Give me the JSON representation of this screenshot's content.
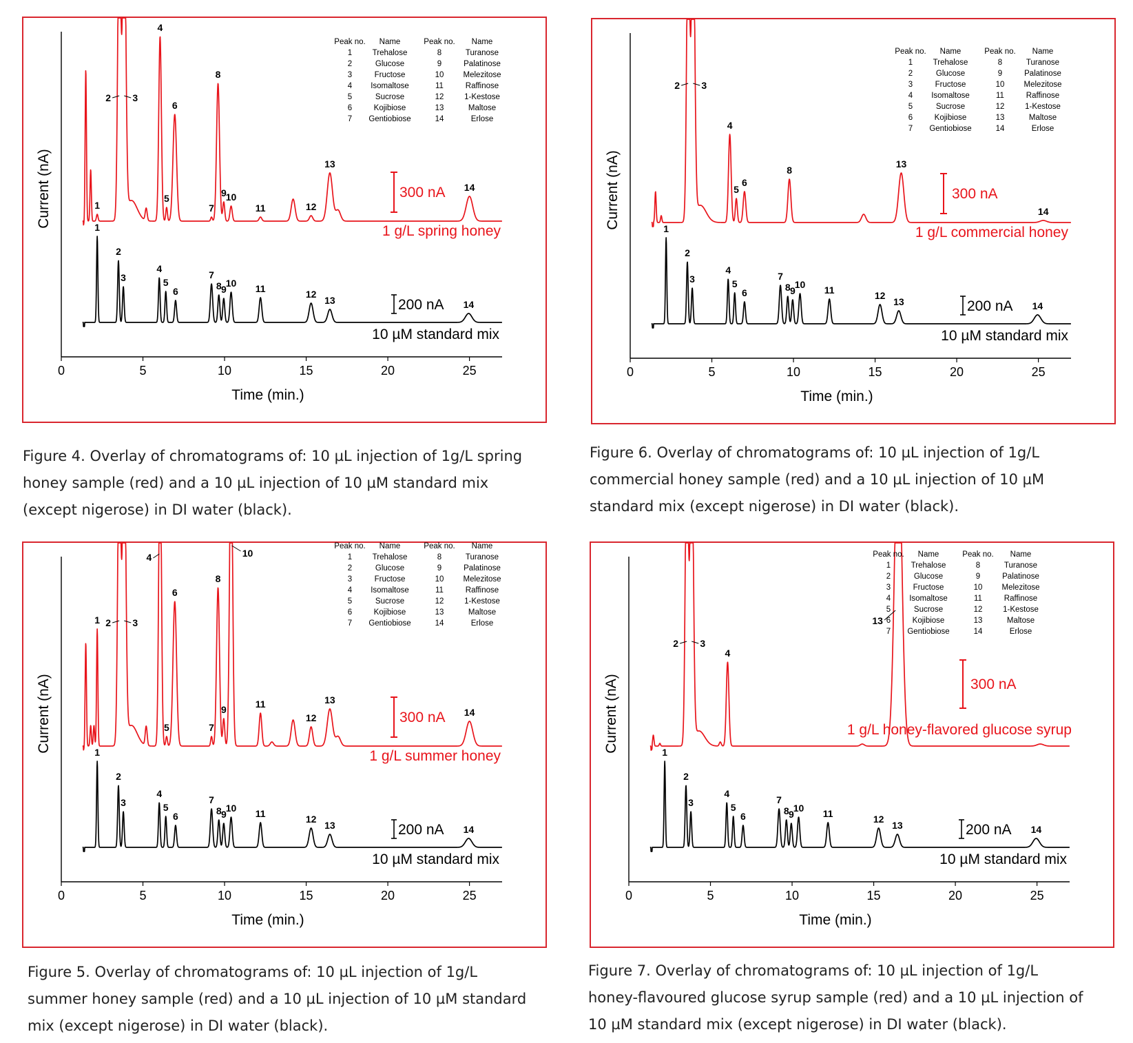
{
  "peak_table": {
    "headers": [
      "Peak no.",
      "Name",
      "Peak no.",
      "Name"
    ],
    "rows": [
      [
        "1",
        "Trehalose",
        "8",
        "Turanose"
      ],
      [
        "2",
        "Glucose",
        "9",
        "Palatinose"
      ],
      [
        "3",
        "Fructose",
        "10",
        "Melezitose"
      ],
      [
        "4",
        "Isomaltose",
        "11",
        "Raffinose"
      ],
      [
        "5",
        "Sucrose",
        "12",
        "1-Kestose"
      ],
      [
        "6",
        "Kojibiose",
        "13",
        "Maltose"
      ],
      [
        "7",
        "Gentiobiose",
        "14",
        "Erlose"
      ]
    ]
  },
  "colors": {
    "sample": "#e8141b",
    "standard": "#000000",
    "frame": "#d9262e"
  },
  "figures": [
    {
      "caption": [
        "Figure 4. Overlay of chromatograms of: 10 µL injection of 1g/L spring",
        "honey sample (red) and a 10 µL injection of 10 µM standard mix",
        "(except nigerose) in DI water (black)."
      ]
    },
    {
      "caption": [
        "Figure 6. Overlay of chromatograms of: 10 µL injection of 1g/L",
        "commercial honey sample (red) and a 10 µL injection of 10 µM",
        "standard mix (except nigerose) in DI water (black)."
      ]
    },
    {
      "caption": [
        "Figure 5. Overlay of chromatograms of: 10 µL injection of 1g/L",
        "summer honey sample (red) and a 10 µL injection of 10 µM standard",
        "mix (except nigerose) in DI water (black)."
      ]
    },
    {
      "caption": [
        "Figure 7. Overlay of chromatograms of: 10 µL injection of 1g/L",
        "honey-flavoured glucose syrup sample (red) and a 10 µL injection of",
        "10 µM standard mix (except nigerose) in DI water (black)."
      ]
    }
  ],
  "chart_data": [
    {
      "type": "line",
      "xlabel": "Time (min.)",
      "ylabel": "Current (nA)",
      "xlim": [
        0,
        27
      ],
      "x_ticks": [
        0,
        5,
        10,
        15,
        20,
        25
      ],
      "grid": false,
      "sample_label": "1 g/L spring honey",
      "sample_scale_bar": "300 nA",
      "standard_label": "10 µM standard mix",
      "standard_scale_bar": "200 nA",
      "series": [
        {
          "name": "1 g/L spring honey",
          "color": "#e8141b",
          "peaks": [
            {
              "t": 1.5,
              "h": 220,
              "w": 0.04
            },
            {
              "t": 1.8,
              "h": 75,
              "w": 0.04
            },
            {
              "t": 2.2,
              "h": 10,
              "w": 0.05,
              "label": "1"
            },
            {
              "t": 3.55,
              "h": 460,
              "w": 0.09,
              "clip": true,
              "label": "2"
            },
            {
              "t": 3.85,
              "h": 460,
              "w": 0.1,
              "clip": true,
              "label": "3"
            },
            {
              "t": 4.3,
              "h": 30,
              "w": 0.35
            },
            {
              "t": 5.2,
              "h": 18,
              "w": 0.06
            },
            {
              "t": 6.05,
              "h": 268,
              "w": 0.08,
              "label": "4"
            },
            {
              "t": 6.45,
              "h": 20,
              "w": 0.05,
              "label": "5"
            },
            {
              "t": 6.95,
              "h": 155,
              "w": 0.11,
              "label": "6"
            },
            {
              "t": 9.2,
              "h": 6,
              "w": 0.05,
              "label": "7"
            },
            {
              "t": 9.6,
              "h": 200,
              "w": 0.09,
              "label": "8"
            },
            {
              "t": 9.95,
              "h": 28,
              "w": 0.06,
              "label": "9"
            },
            {
              "t": 10.4,
              "h": 22,
              "w": 0.07,
              "label": "10"
            },
            {
              "t": 12.2,
              "h": 6,
              "w": 0.08,
              "label": "11"
            },
            {
              "t": 14.2,
              "h": 32,
              "w": 0.12
            },
            {
              "t": 15.3,
              "h": 8,
              "w": 0.1,
              "label": "12"
            },
            {
              "t": 16.45,
              "h": 70,
              "w": 0.16,
              "label": "13"
            },
            {
              "t": 16.95,
              "h": 16,
              "w": 0.15
            },
            {
              "t": 25.0,
              "h": 36,
              "w": 0.2,
              "label": "14"
            }
          ]
        },
        {
          "name": "10 µM standard mix",
          "color": "#000000",
          "peaks": [
            {
              "t": 2.2,
              "h": 125,
              "w": 0.04,
              "label": "1"
            },
            {
              "t": 3.5,
              "h": 90,
              "w": 0.05,
              "label": "2"
            },
            {
              "t": 3.8,
              "h": 52,
              "w": 0.05,
              "label": "3"
            },
            {
              "t": 6.0,
              "h": 65,
              "w": 0.05,
              "label": "4"
            },
            {
              "t": 6.4,
              "h": 45,
              "w": 0.05,
              "label": "5"
            },
            {
              "t": 7.0,
              "h": 32,
              "w": 0.06,
              "label": "6"
            },
            {
              "t": 9.2,
              "h": 56,
              "w": 0.07,
              "label": "7"
            },
            {
              "t": 9.65,
              "h": 40,
              "w": 0.06,
              "label": "8"
            },
            {
              "t": 9.95,
              "h": 35,
              "w": 0.06,
              "label": "9"
            },
            {
              "t": 10.4,
              "h": 44,
              "w": 0.07,
              "label": "10"
            },
            {
              "t": 12.2,
              "h": 36,
              "w": 0.08,
              "label": "11"
            },
            {
              "t": 15.3,
              "h": 28,
              "w": 0.12,
              "label": "12"
            },
            {
              "t": 16.45,
              "h": 19,
              "w": 0.13,
              "label": "13"
            },
            {
              "t": 24.95,
              "h": 13,
              "w": 0.2,
              "label": "14"
            }
          ]
        }
      ]
    },
    {
      "type": "line",
      "xlabel": "Time (min.)",
      "ylabel": "Current (nA)",
      "xlim": [
        0,
        27
      ],
      "x_ticks": [
        0,
        5,
        10,
        15,
        20,
        25
      ],
      "grid": false,
      "sample_label": "1 g/L commercial honey",
      "sample_scale_bar": "300 nA",
      "standard_label": "10 µM standard mix",
      "standard_scale_bar": "200 nA",
      "series": [
        {
          "name": "1 g/L commercial honey",
          "color": "#e8141b",
          "peaks": [
            {
              "t": 1.55,
              "h": 45,
              "w": 0.04
            },
            {
              "t": 1.9,
              "h": 10,
              "w": 0.04
            },
            {
              "t": 3.55,
              "h": 460,
              "w": 0.09,
              "clip": true,
              "label": "2"
            },
            {
              "t": 3.85,
              "h": 460,
              "w": 0.1,
              "clip": true,
              "label": "3"
            },
            {
              "t": 4.3,
              "h": 25,
              "w": 0.35
            },
            {
              "t": 6.1,
              "h": 128,
              "w": 0.08,
              "label": "4"
            },
            {
              "t": 6.5,
              "h": 35,
              "w": 0.06,
              "label": "5"
            },
            {
              "t": 7.0,
              "h": 45,
              "w": 0.08,
              "label": "6"
            },
            {
              "t": 9.75,
              "h": 63,
              "w": 0.09,
              "label": "8"
            },
            {
              "t": 14.3,
              "h": 12,
              "w": 0.13
            },
            {
              "t": 16.6,
              "h": 72,
              "w": 0.16,
              "label": "13"
            },
            {
              "t": 25.3,
              "h": 3,
              "w": 0.2,
              "label": "14"
            }
          ]
        },
        {
          "name": "10 µM standard mix",
          "color": "#000000",
          "peaks": [
            {
              "t": 2.2,
              "h": 125,
              "w": 0.04,
              "label": "1"
            },
            {
              "t": 3.5,
              "h": 90,
              "w": 0.05,
              "label": "2"
            },
            {
              "t": 3.8,
              "h": 52,
              "w": 0.05,
              "label": "3"
            },
            {
              "t": 6.0,
              "h": 65,
              "w": 0.05,
              "label": "4"
            },
            {
              "t": 6.4,
              "h": 45,
              "w": 0.05,
              "label": "5"
            },
            {
              "t": 7.0,
              "h": 32,
              "w": 0.06,
              "label": "6"
            },
            {
              "t": 9.2,
              "h": 56,
              "w": 0.07,
              "label": "7"
            },
            {
              "t": 9.65,
              "h": 40,
              "w": 0.06,
              "label": "8"
            },
            {
              "t": 9.95,
              "h": 35,
              "w": 0.06,
              "label": "9"
            },
            {
              "t": 10.4,
              "h": 44,
              "w": 0.07,
              "label": "10"
            },
            {
              "t": 12.2,
              "h": 36,
              "w": 0.08,
              "label": "11"
            },
            {
              "t": 15.3,
              "h": 28,
              "w": 0.12,
              "label": "12"
            },
            {
              "t": 16.45,
              "h": 19,
              "w": 0.13,
              "label": "13"
            },
            {
              "t": 24.95,
              "h": 13,
              "w": 0.2,
              "label": "14"
            }
          ]
        }
      ]
    },
    {
      "type": "line",
      "xlabel": "Time (min.)",
      "ylabel": "Current (nA)",
      "xlim": [
        0,
        27
      ],
      "x_ticks": [
        0,
        5,
        10,
        15,
        20,
        25
      ],
      "grid": false,
      "sample_label": "1 g/L summer honey",
      "sample_scale_bar": "300 nA",
      "standard_label": "10 µM standard mix",
      "standard_scale_bar": "200 nA",
      "series": [
        {
          "name": "1 g/L summer honey",
          "color": "#e8141b",
          "peaks": [
            {
              "t": 1.5,
              "h": 150,
              "w": 0.04
            },
            {
              "t": 1.8,
              "h": 30,
              "w": 0.04
            },
            {
              "t": 2.0,
              "h": 30,
              "w": 0.04
            },
            {
              "t": 2.2,
              "h": 170,
              "w": 0.04,
              "label": "1"
            },
            {
              "t": 3.55,
              "h": 460,
              "w": 0.09,
              "clip": true,
              "label": "2"
            },
            {
              "t": 3.85,
              "h": 460,
              "w": 0.1,
              "clip": true,
              "label": "3"
            },
            {
              "t": 4.3,
              "h": 30,
              "w": 0.35
            },
            {
              "t": 5.2,
              "h": 28,
              "w": 0.06
            },
            {
              "t": 6.05,
              "h": 460,
              "w": 0.08,
              "clip": true,
              "label": "4"
            },
            {
              "t": 6.45,
              "h": 14,
              "w": 0.05,
              "label": "5"
            },
            {
              "t": 6.95,
              "h": 210,
              "w": 0.11,
              "label": "6"
            },
            {
              "t": 9.2,
              "h": 14,
              "w": 0.05,
              "label": "7"
            },
            {
              "t": 9.6,
              "h": 230,
              "w": 0.09,
              "label": "8"
            },
            {
              "t": 9.95,
              "h": 40,
              "w": 0.06,
              "label": "9"
            },
            {
              "t": 10.4,
              "h": 460,
              "w": 0.09,
              "clip": true,
              "label": "10"
            },
            {
              "t": 12.2,
              "h": 48,
              "w": 0.08,
              "label": "11"
            },
            {
              "t": 12.9,
              "h": 6,
              "w": 0.1
            },
            {
              "t": 14.2,
              "h": 38,
              "w": 0.12
            },
            {
              "t": 15.3,
              "h": 28,
              "w": 0.1,
              "label": "12"
            },
            {
              "t": 16.45,
              "h": 54,
              "w": 0.16,
              "label": "13"
            },
            {
              "t": 16.95,
              "h": 14,
              "w": 0.15
            },
            {
              "t": 25.0,
              "h": 36,
              "w": 0.2,
              "label": "14"
            }
          ]
        },
        {
          "name": "10 µM standard mix",
          "color": "#000000",
          "peaks": [
            {
              "t": 2.2,
              "h": 125,
              "w": 0.04,
              "label": "1"
            },
            {
              "t": 3.5,
              "h": 90,
              "w": 0.05,
              "label": "2"
            },
            {
              "t": 3.8,
              "h": 52,
              "w": 0.05,
              "label": "3"
            },
            {
              "t": 6.0,
              "h": 65,
              "w": 0.05,
              "label": "4"
            },
            {
              "t": 6.4,
              "h": 45,
              "w": 0.05,
              "label": "5"
            },
            {
              "t": 7.0,
              "h": 32,
              "w": 0.06,
              "label": "6"
            },
            {
              "t": 9.2,
              "h": 56,
              "w": 0.07,
              "label": "7"
            },
            {
              "t": 9.65,
              "h": 40,
              "w": 0.06,
              "label": "8"
            },
            {
              "t": 9.95,
              "h": 35,
              "w": 0.06,
              "label": "9"
            },
            {
              "t": 10.4,
              "h": 44,
              "w": 0.07,
              "label": "10"
            },
            {
              "t": 12.2,
              "h": 36,
              "w": 0.08,
              "label": "11"
            },
            {
              "t": 15.3,
              "h": 28,
              "w": 0.12,
              "label": "12"
            },
            {
              "t": 16.45,
              "h": 19,
              "w": 0.13,
              "label": "13"
            },
            {
              "t": 24.95,
              "h": 13,
              "w": 0.2,
              "label": "14"
            }
          ]
        }
      ]
    },
    {
      "type": "line",
      "xlabel": "Time (min.)",
      "ylabel": "Current (nA)",
      "xlim": [
        0,
        27
      ],
      "x_ticks": [
        0,
        5,
        10,
        15,
        20,
        25
      ],
      "grid": false,
      "sample_label": "1 g/L honey-flavored glucose syrup",
      "sample_scale_bar": "300 nA",
      "standard_label": "10 µM standard mix",
      "standard_scale_bar": "200 nA",
      "series": [
        {
          "name": "1 g/L honey-flavored glucose syrup",
          "color": "#e8141b",
          "peaks": [
            {
              "t": 1.5,
              "h": 16,
              "w": 0.04
            },
            {
              "t": 1.9,
              "h": 4,
              "w": 0.04
            },
            {
              "t": 3.55,
              "h": 460,
              "w": 0.09,
              "clip": true,
              "label": "2"
            },
            {
              "t": 3.85,
              "h": 460,
              "w": 0.1,
              "clip": true,
              "label": "3"
            },
            {
              "t": 4.3,
              "h": 22,
              "w": 0.35
            },
            {
              "t": 5.6,
              "h": 6,
              "w": 0.06
            },
            {
              "t": 6.05,
              "h": 122,
              "w": 0.08,
              "label": "4"
            },
            {
              "t": 14.3,
              "h": 3,
              "w": 0.12
            },
            {
              "t": 16.5,
              "h": 460,
              "w": 0.22,
              "clip": true,
              "label": "13"
            },
            {
              "t": 25.2,
              "h": 3,
              "w": 0.2
            }
          ]
        },
        {
          "name": "10 µM standard mix",
          "color": "#000000",
          "peaks": [
            {
              "t": 2.2,
              "h": 125,
              "w": 0.04,
              "label": "1"
            },
            {
              "t": 3.5,
              "h": 90,
              "w": 0.05,
              "label": "2"
            },
            {
              "t": 3.8,
              "h": 52,
              "w": 0.05,
              "label": "3"
            },
            {
              "t": 6.0,
              "h": 65,
              "w": 0.05,
              "label": "4"
            },
            {
              "t": 6.4,
              "h": 45,
              "w": 0.05,
              "label": "5"
            },
            {
              "t": 7.0,
              "h": 32,
              "w": 0.06,
              "label": "6"
            },
            {
              "t": 9.2,
              "h": 56,
              "w": 0.07,
              "label": "7"
            },
            {
              "t": 9.65,
              "h": 40,
              "w": 0.06,
              "label": "8"
            },
            {
              "t": 9.95,
              "h": 35,
              "w": 0.06,
              "label": "9"
            },
            {
              "t": 10.4,
              "h": 44,
              "w": 0.07,
              "label": "10"
            },
            {
              "t": 12.2,
              "h": 36,
              "w": 0.08,
              "label": "11"
            },
            {
              "t": 15.3,
              "h": 28,
              "w": 0.12,
              "label": "12"
            },
            {
              "t": 16.45,
              "h": 19,
              "w": 0.13,
              "label": "13"
            },
            {
              "t": 24.95,
              "h": 13,
              "w": 0.2,
              "label": "14"
            }
          ]
        }
      ]
    }
  ]
}
